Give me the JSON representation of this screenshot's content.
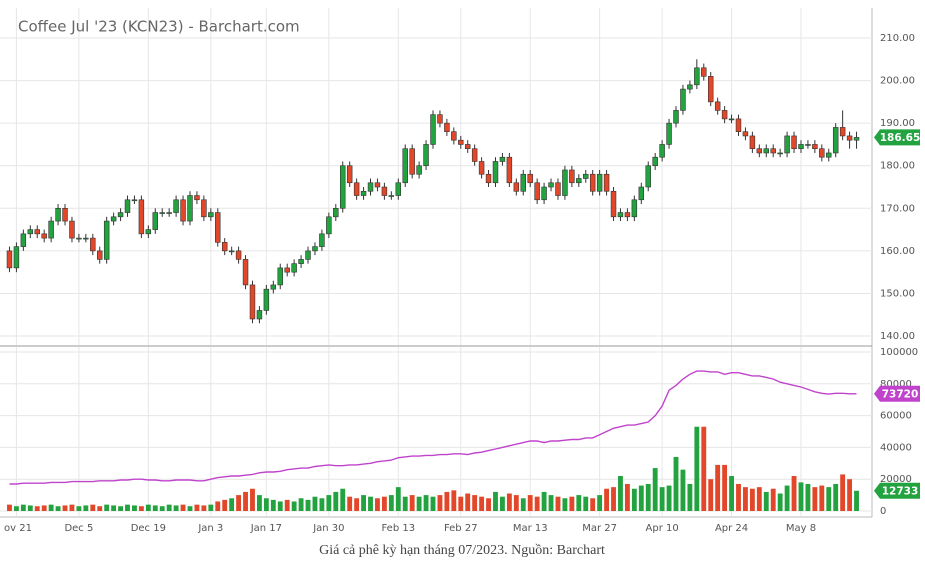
{
  "chart_data": [
    {
      "type": "candlestick",
      "title": "Coffee Jul '23 (KCN23) - Barchart.com",
      "caption": "Giá cả phê kỳ hạn tháng 07/2023. Nguồn: Barchart",
      "up_color": "#23a33f",
      "down_color": "#e2472a",
      "grid": true,
      "ylim": [
        137.89,
        217.05
      ],
      "yticks": [
        {
          "value": 140,
          "label": "140.00"
        },
        {
          "value": 150,
          "label": "150.00"
        },
        {
          "value": 160,
          "label": "160.00"
        },
        {
          "value": 170,
          "label": "170.00"
        },
        {
          "value": 180,
          "label": "180.00"
        },
        {
          "value": 190,
          "label": "190.00"
        },
        {
          "value": 200,
          "label": "200.00"
        },
        {
          "value": 210,
          "label": "210.00"
        }
      ],
      "categories": [
        null,
        "ov 21",
        null,
        null,
        null,
        null,
        null,
        null,
        null,
        null,
        "Dec 5",
        null,
        null,
        null,
        null,
        null,
        null,
        null,
        null,
        null,
        "Dec 19",
        null,
        null,
        null,
        null,
        null,
        null,
        null,
        null,
        "Jan 3",
        null,
        null,
        null,
        null,
        null,
        null,
        null,
        "Jan 17",
        null,
        null,
        null,
        null,
        null,
        null,
        null,
        null,
        "Jan 30",
        null,
        null,
        null,
        null,
        null,
        null,
        null,
        null,
        null,
        "Feb 13",
        null,
        null,
        null,
        null,
        null,
        null,
        null,
        null,
        "Feb 27",
        null,
        null,
        null,
        null,
        null,
        null,
        null,
        null,
        null,
        "Mar 13",
        null,
        null,
        null,
        null,
        null,
        null,
        null,
        null,
        null,
        "Mar 27",
        null,
        null,
        null,
        null,
        null,
        null,
        null,
        null,
        "Apr 10",
        null,
        null,
        null,
        null,
        null,
        null,
        null,
        null,
        null,
        "Apr 24",
        null,
        null,
        null,
        null,
        null,
        null,
        null,
        null,
        null,
        "May 8",
        null,
        null,
        null,
        null,
        null,
        null,
        null,
        null
      ],
      "open": [
        160,
        156,
        161,
        164,
        165,
        164,
        163,
        167,
        170,
        167,
        163,
        163,
        163,
        160,
        158,
        167,
        168,
        169,
        172,
        172,
        164,
        165,
        169,
        169,
        169,
        172,
        167,
        173,
        172,
        168,
        169,
        162,
        160,
        160,
        158,
        152,
        144,
        146,
        151,
        152,
        156,
        155,
        157,
        158,
        160,
        161,
        164,
        168,
        170,
        180,
        176,
        173,
        174,
        176,
        175,
        173,
        173,
        176,
        184,
        178,
        180,
        185,
        192,
        190,
        188,
        186,
        185,
        184,
        181,
        178,
        176,
        181,
        182,
        176,
        174,
        178,
        176,
        172,
        175,
        176,
        173,
        179,
        176,
        177,
        178,
        174,
        178,
        174,
        168,
        169,
        168,
        172,
        175,
        180,
        182,
        185,
        190,
        193,
        198,
        199,
        203,
        201,
        195,
        193,
        191,
        191,
        188,
        187,
        184,
        183,
        184,
        183,
        183,
        187,
        184,
        185,
        185,
        184,
        182,
        183,
        189,
        187,
        186
      ],
      "high": [
        161,
        162,
        165,
        166,
        166,
        165,
        168,
        171,
        171,
        168,
        164,
        164,
        164,
        161,
        168,
        169,
        170,
        173,
        173,
        173,
        166,
        170,
        170,
        170,
        173,
        173,
        174,
        174,
        173,
        170,
        170,
        163,
        161,
        161,
        159,
        153,
        147,
        152,
        153,
        157,
        157,
        158,
        159,
        161,
        162,
        165,
        169,
        171,
        181,
        181,
        177,
        175,
        177,
        177,
        176,
        174,
        177,
        185,
        185,
        181,
        186,
        193,
        193,
        191,
        189,
        187,
        186,
        185,
        182,
        179,
        182,
        183,
        183,
        177,
        179,
        179,
        177,
        176,
        177,
        177,
        180,
        180,
        178,
        179,
        179,
        179,
        179,
        175,
        170,
        170,
        173,
        176,
        181,
        183,
        186,
        191,
        194,
        199,
        200,
        205,
        204,
        202,
        196,
        194,
        192,
        192,
        189,
        188,
        185,
        185,
        185,
        184,
        188,
        188,
        186,
        186,
        186,
        185,
        184,
        190,
        193,
        188,
        188
      ],
      "low": [
        155,
        155,
        160,
        163,
        163,
        162,
        162,
        166,
        166,
        162,
        162,
        162,
        159,
        157,
        157,
        166,
        167,
        168,
        171,
        163,
        163,
        164,
        168,
        168,
        168,
        166,
        166,
        171,
        167,
        167,
        161,
        159,
        159,
        157,
        151,
        143,
        143,
        145,
        150,
        151,
        154,
        154,
        156,
        157,
        159,
        160,
        163,
        167,
        169,
        175,
        172,
        172,
        173,
        174,
        172,
        172,
        172,
        175,
        177,
        177,
        179,
        184,
        189,
        187,
        185,
        184,
        183,
        180,
        177,
        175,
        175,
        180,
        175,
        173,
        173,
        175,
        171,
        171,
        174,
        172,
        172,
        175,
        175,
        176,
        173,
        173,
        173,
        167,
        167,
        167,
        167,
        171,
        174,
        179,
        181,
        184,
        189,
        192,
        197,
        198,
        200,
        194,
        192,
        190,
        190,
        187,
        186,
        183,
        182,
        182,
        182,
        182,
        182,
        183,
        183,
        184,
        183,
        181,
        181,
        182,
        186,
        184,
        184
      ],
      "close": [
        156,
        161,
        164,
        165,
        164,
        163,
        167,
        170,
        167,
        163,
        163,
        163,
        160,
        158,
        167,
        168,
        169,
        172,
        172,
        164,
        165,
        169,
        169,
        169,
        172,
        167,
        173,
        172,
        168,
        169,
        162,
        160,
        160,
        158,
        152,
        144,
        146,
        151,
        152,
        156,
        155,
        157,
        158,
        160,
        161,
        164,
        168,
        170,
        180,
        176,
        173,
        174,
        176,
        175,
        173,
        173,
        176,
        184,
        178,
        180,
        185,
        192,
        190,
        188,
        186,
        185,
        184,
        181,
        178,
        176,
        181,
        182,
        176,
        174,
        178,
        176,
        172,
        175,
        176,
        173,
        179,
        176,
        177,
        178,
        174,
        178,
        174,
        168,
        169,
        168,
        172,
        175,
        180,
        182,
        185,
        190,
        193,
        198,
        199,
        203,
        201,
        195,
        193,
        191,
        191,
        188,
        187,
        184,
        183,
        184,
        183,
        183,
        187,
        184,
        185,
        185,
        184,
        182,
        183,
        189,
        187,
        186,
        186.65
      ]
    },
    {
      "type": "volume",
      "grid": true,
      "ylim": [
        0,
        103145
      ],
      "yticks": [
        0,
        20000,
        40000,
        60000,
        80000,
        100000
      ],
      "series": [
        {
          "type": "bar",
          "values": [
            4000,
            3000,
            4000,
            3500,
            3000,
            3500,
            4000,
            3000,
            3500,
            4000,
            3000,
            3500,
            4000,
            3000,
            4000,
            3500,
            3000,
            4000,
            3500,
            3000,
            4000,
            3500,
            3000,
            4000,
            3500,
            4000,
            3000,
            4000,
            3500,
            4000,
            6000,
            7000,
            8000,
            10000,
            12000,
            14000,
            10000,
            8000,
            7000,
            6000,
            7000,
            6000,
            8000,
            7000,
            9000,
            8000,
            10000,
            12000,
            14000,
            9000,
            8000,
            10000,
            9000,
            8000,
            9000,
            10000,
            15000,
            9000,
            10000,
            9000,
            10000,
            9000,
            10000,
            12000,
            13000,
            9000,
            11000,
            10000,
            9000,
            8000,
            12000,
            9000,
            11000,
            10000,
            8000,
            10000,
            9000,
            12000,
            10000,
            9000,
            8000,
            9000,
            10000,
            9000,
            8000,
            10000,
            14000,
            15000,
            22000,
            17000,
            14000,
            16000,
            17000,
            27000,
            15000,
            16000,
            34000,
            26000,
            17000,
            53000,
            53000,
            20000,
            29000,
            29000,
            22000,
            17000,
            15000,
            14000,
            15000,
            12000,
            14000,
            11000,
            16000,
            22000,
            18000,
            17000,
            15000,
            16000,
            15000,
            17000,
            23000,
            20000,
            12733
          ]
        },
        {
          "type": "line",
          "color": "#c043cc",
          "values": [
            17000,
            17000,
            17500,
            17500,
            17500,
            17500,
            18000,
            18000,
            18000,
            18500,
            18500,
            18500,
            18500,
            19000,
            19000,
            19000,
            19500,
            19500,
            20000,
            20000,
            19500,
            19500,
            19000,
            19000,
            19500,
            19500,
            19500,
            19000,
            19000,
            20000,
            21000,
            21500,
            22000,
            22000,
            22500,
            23000,
            24000,
            24500,
            24500,
            25000,
            26000,
            26500,
            27000,
            27000,
            28000,
            28500,
            29000,
            28500,
            28500,
            29000,
            29000,
            29500,
            30000,
            31000,
            31500,
            32000,
            33500,
            34000,
            34500,
            34500,
            35000,
            35000,
            35500,
            35500,
            36000,
            36000,
            35500,
            36500,
            37000,
            38000,
            39000,
            40000,
            41000,
            42000,
            43000,
            44000,
            44000,
            43000,
            44000,
            44000,
            44500,
            45000,
            45000,
            46000,
            46000,
            48000,
            50000,
            52000,
            53000,
            54000,
            54000,
            55000,
            56000,
            60000,
            66000,
            76000,
            79000,
            83000,
            86000,
            88000,
            88000,
            87500,
            87500,
            86000,
            87000,
            87000,
            86000,
            85000,
            85000,
            84000,
            83000,
            81000,
            80000,
            79000,
            78000,
            76500,
            75000,
            74000,
            73500,
            74000,
            74000,
            73720,
            73720
          ]
        }
      ]
    }
  ]
}
